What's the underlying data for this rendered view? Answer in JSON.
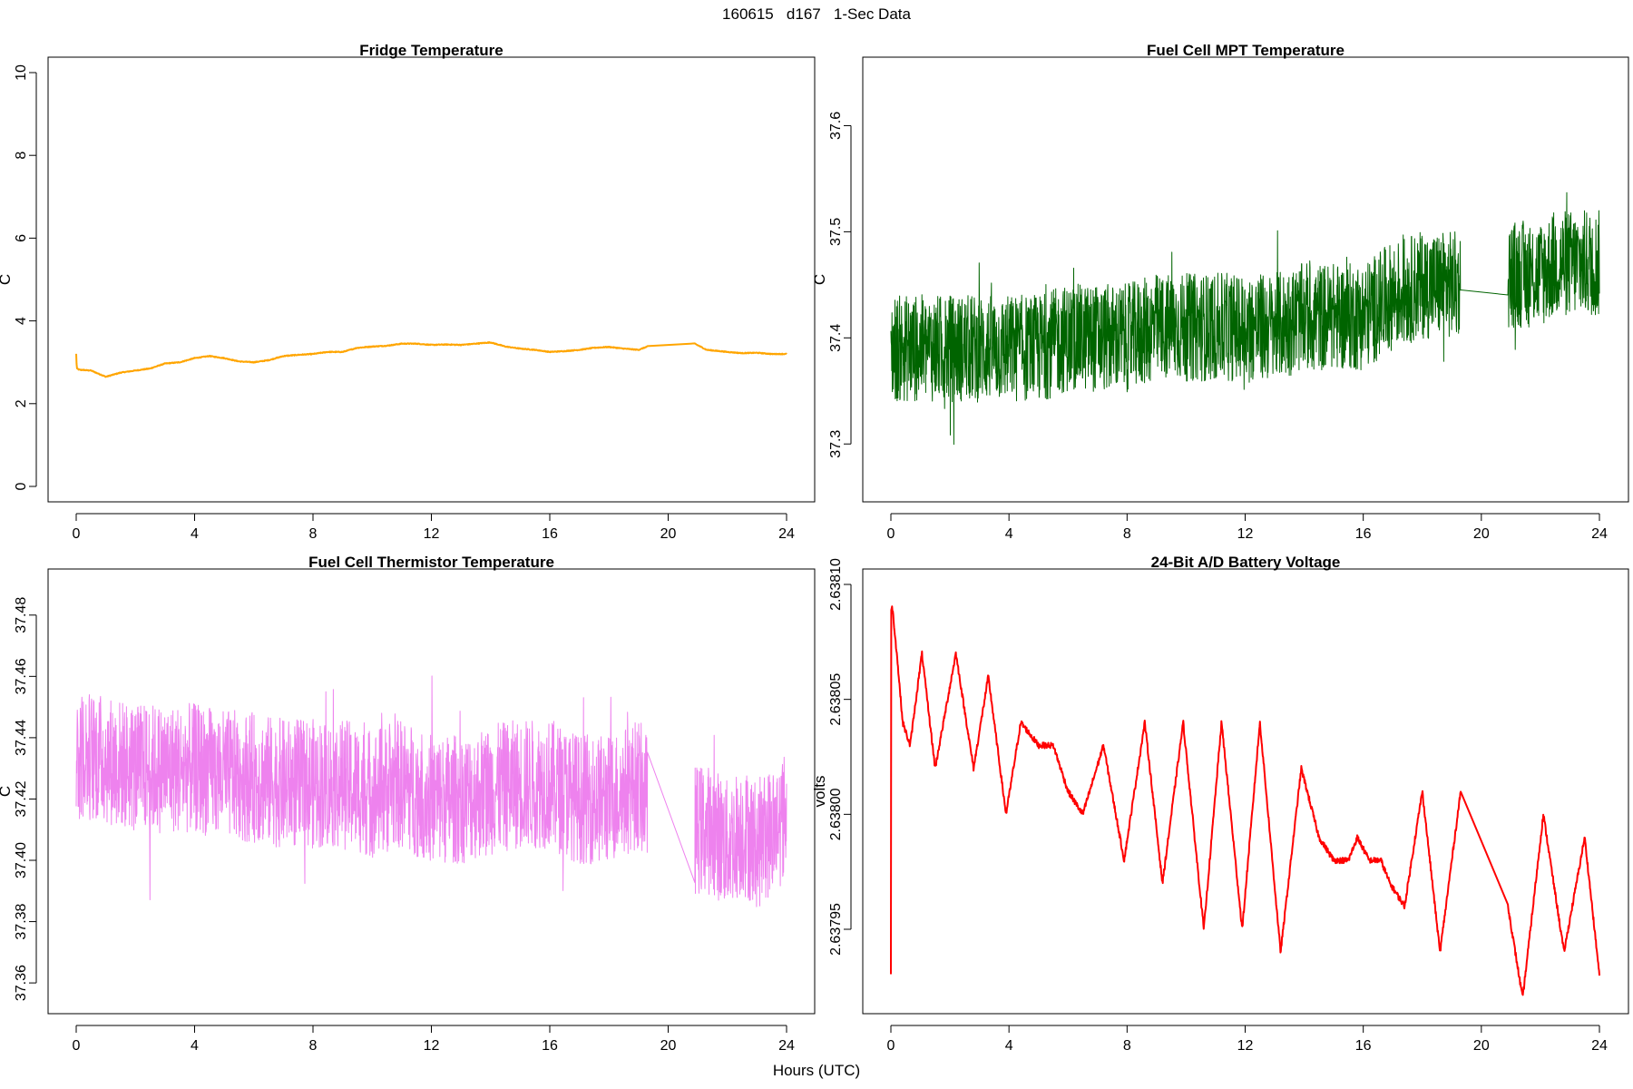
{
  "figure": {
    "title": "160615   d167   1-Sec Data",
    "xlabel": "Hours (UTC)"
  },
  "chart_data": [
    {
      "type": "line",
      "title": "Fridge Temperature",
      "ylabel": "C",
      "xlabel": "Hours (UTC)",
      "color": "#FFA500",
      "xlim": [
        0,
        24
      ],
      "ylim": [
        0,
        10
      ],
      "xticks": [
        0,
        4,
        8,
        12,
        16,
        20,
        24
      ],
      "yticks": [
        0,
        2,
        4,
        6,
        8,
        10
      ],
      "ytick_labels": [
        "0",
        "2",
        "4",
        "6",
        "8",
        "10"
      ],
      "noise": 0.02,
      "gap": [
        19.3,
        20.9
      ],
      "series": [
        {
          "name": "Fridge Temperature",
          "x": [
            0,
            0.02,
            0.1,
            0.5,
            1.0,
            1.5,
            2.0,
            2.5,
            3.0,
            3.5,
            4.0,
            4.5,
            5.0,
            5.5,
            6.0,
            6.5,
            7.0,
            7.5,
            8.0,
            8.5,
            9.0,
            9.5,
            10.0,
            10.5,
            11.0,
            11.5,
            12.0,
            12.5,
            13.0,
            13.5,
            14.0,
            14.5,
            15.0,
            15.5,
            16.0,
            16.5,
            17.0,
            17.5,
            18.0,
            18.5,
            19.0,
            19.3,
            20.9,
            21.3,
            22.0,
            22.5,
            23.0,
            23.5,
            24.0
          ],
          "y": [
            3.2,
            2.85,
            2.82,
            2.8,
            2.65,
            2.75,
            2.8,
            2.85,
            2.97,
            3.0,
            3.1,
            3.15,
            3.1,
            3.02,
            3.0,
            3.05,
            3.15,
            3.18,
            3.2,
            3.25,
            3.25,
            3.35,
            3.38,
            3.4,
            3.45,
            3.45,
            3.42,
            3.43,
            3.42,
            3.45,
            3.48,
            3.38,
            3.33,
            3.3,
            3.25,
            3.27,
            3.3,
            3.35,
            3.37,
            3.33,
            3.3,
            3.38,
            3.45,
            3.3,
            3.25,
            3.22,
            3.23,
            3.2,
            3.2
          ]
        }
      ]
    },
    {
      "type": "line",
      "title": "Fuel Cell MPT Temperature",
      "ylabel": "C",
      "xlabel": "Hours (UTC)",
      "color": "#006400",
      "xlim": [
        0,
        24
      ],
      "ylim": [
        37.26,
        37.65
      ],
      "xticks": [
        0,
        4,
        8,
        12,
        16,
        20,
        24
      ],
      "yticks": [
        37.3,
        37.4,
        37.5,
        37.6
      ],
      "ytick_labels": [
        "37.3",
        "37.4",
        "37.5",
        "37.6"
      ],
      "noise": 0.06,
      "gap": [
        19.3,
        20.9
      ],
      "series": [
        {
          "name": "Fuel Cell MPT Temperature",
          "x": [
            0,
            1,
            2,
            3,
            4,
            5,
            6,
            7,
            8,
            9,
            10,
            11,
            12,
            13,
            14,
            15,
            16,
            17,
            18,
            19,
            19.3,
            20.9,
            21.5,
            22,
            22.5,
            23,
            23.5,
            24
          ],
          "y": [
            37.39,
            37.39,
            37.39,
            37.39,
            37.39,
            37.39,
            37.4,
            37.4,
            37.4,
            37.41,
            37.41,
            37.41,
            37.41,
            37.41,
            37.42,
            37.42,
            37.42,
            37.44,
            37.45,
            37.45,
            37.45,
            37.46,
            37.46,
            37.46,
            37.47,
            37.47,
            37.47,
            37.47
          ]
        }
      ]
    },
    {
      "type": "line",
      "title": "Fuel Cell Thermistor Temperature",
      "ylabel": "C",
      "xlabel": "Hours (UTC)",
      "color": "#EE82EE",
      "xlim": [
        0,
        24
      ],
      "ylim": [
        37.355,
        37.49
      ],
      "xticks": [
        0,
        4,
        8,
        12,
        16,
        20,
        24
      ],
      "yticks": [
        37.36,
        37.38,
        37.4,
        37.42,
        37.44,
        37.46,
        37.48
      ],
      "ytick_labels": [
        "37.36",
        "37.38",
        "37.40",
        "37.42",
        "37.44",
        "37.46",
        "37.48"
      ],
      "noise": 0.025,
      "gap": [
        19.3,
        20.9
      ],
      "series": [
        {
          "name": "Fuel Cell Thermistor Temperature",
          "x": [
            0,
            1,
            2,
            3,
            4,
            5,
            6,
            7,
            8,
            9,
            10,
            11,
            12,
            13,
            14,
            15,
            16,
            17,
            18,
            19,
            19.3,
            20.9,
            21.5,
            22,
            22.5,
            23,
            23.5,
            24
          ],
          "y": [
            37.435,
            37.433,
            37.43,
            37.43,
            37.43,
            37.428,
            37.427,
            37.425,
            37.425,
            37.425,
            37.422,
            37.425,
            37.42,
            37.42,
            37.423,
            37.425,
            37.425,
            37.42,
            37.42,
            37.425,
            37.42,
            37.41,
            37.41,
            37.405,
            37.41,
            37.405,
            37.41,
            37.415
          ]
        }
      ]
    },
    {
      "type": "line",
      "title": "24-Bit A/D Battery Voltage",
      "ylabel": "volts",
      "xlabel": "Hours (UTC)",
      "color": "#FF0000",
      "xlim": [
        0,
        24
      ],
      "ylim": [
        2.63792,
        2.6381
      ],
      "xticks": [
        0,
        4,
        8,
        12,
        16,
        20,
        24
      ],
      "yticks": [
        2.63795,
        2.638,
        2.63805,
        2.6381
      ],
      "ytick_labels": [
        "2.63795",
        "2.63800",
        "2.63805",
        "2.63810"
      ],
      "noise": 2.5e-06,
      "gap": [
        19.3,
        20.9
      ],
      "series": [
        {
          "name": "24-Bit A/D Battery Voltage",
          "x": [
            0,
            0.01,
            0.05,
            0.2,
            0.4,
            0.65,
            1.05,
            1.5,
            2.2,
            2.8,
            3.3,
            3.9,
            4.4,
            5.0,
            5.5,
            6.0,
            6.5,
            7.2,
            7.9,
            8.6,
            9.2,
            9.9,
            10.6,
            11.2,
            11.9,
            12.5,
            13.2,
            13.9,
            14.5,
            15.0,
            15.5,
            15.8,
            16.2,
            16.6,
            16.9,
            17.4,
            18.0,
            18.6,
            19.3,
            20.9,
            21.4,
            22.1,
            22.8,
            23.5,
            24.0
          ],
          "y": [
            2.63793,
            2.63809,
            2.63809,
            2.63807,
            2.63804,
            2.63803,
            2.63807,
            2.63802,
            2.63807,
            2.63802,
            2.63806,
            2.638,
            2.63804,
            2.63803,
            2.63803,
            2.63801,
            2.638,
            2.63803,
            2.63798,
            2.63804,
            2.63797,
            2.63804,
            2.63795,
            2.63804,
            2.63795,
            2.63804,
            2.63794,
            2.63802,
            2.63799,
            2.63798,
            2.63798,
            2.63799,
            2.63798,
            2.63798,
            2.63797,
            2.63796,
            2.63801,
            2.63794,
            2.63801,
            2.63796,
            2.63792,
            2.638,
            2.63794,
            2.63799,
            2.63793
          ]
        }
      ]
    }
  ]
}
